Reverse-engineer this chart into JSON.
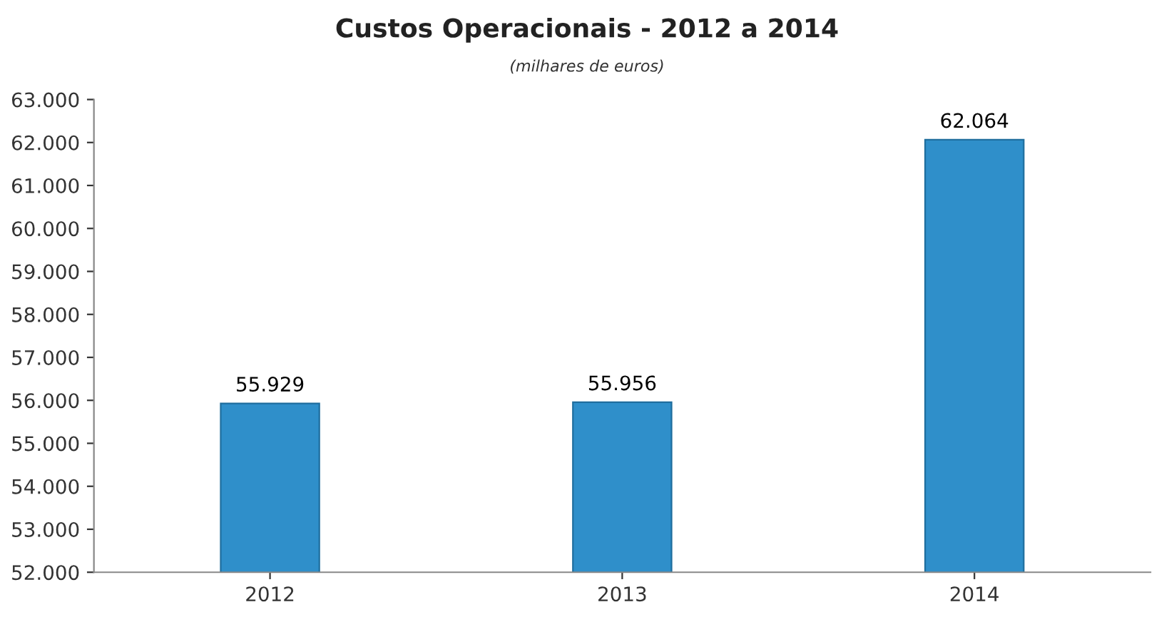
{
  "chart_data": {
    "type": "bar",
    "title": "Custos Operacionais - 2012 a 2014",
    "subtitle": "(milhares de euros)",
    "categories": [
      "2012",
      "2013",
      "2014"
    ],
    "values": [
      55929,
      55956,
      62064
    ],
    "value_labels": [
      "55.929",
      "55.956",
      "62.064"
    ],
    "color": "#2f8fca",
    "ylim": [
      52000,
      63000
    ],
    "yticks": [
      {
        "value": 52000,
        "label": "52.000"
      },
      {
        "value": 53000,
        "label": "53.000"
      },
      {
        "value": 54000,
        "label": "54.000"
      },
      {
        "value": 55000,
        "label": "55.000"
      },
      {
        "value": 56000,
        "label": "56.000"
      },
      {
        "value": 57000,
        "label": "57.000"
      },
      {
        "value": 58000,
        "label": "58.000"
      },
      {
        "value": 59000,
        "label": "59.000"
      },
      {
        "value": 60000,
        "label": "60.000"
      },
      {
        "value": 61000,
        "label": "61.000"
      },
      {
        "value": 62000,
        "label": "62.000"
      },
      {
        "value": 63000,
        "label": "63.000"
      }
    ],
    "grid": false,
    "legend": false
  }
}
